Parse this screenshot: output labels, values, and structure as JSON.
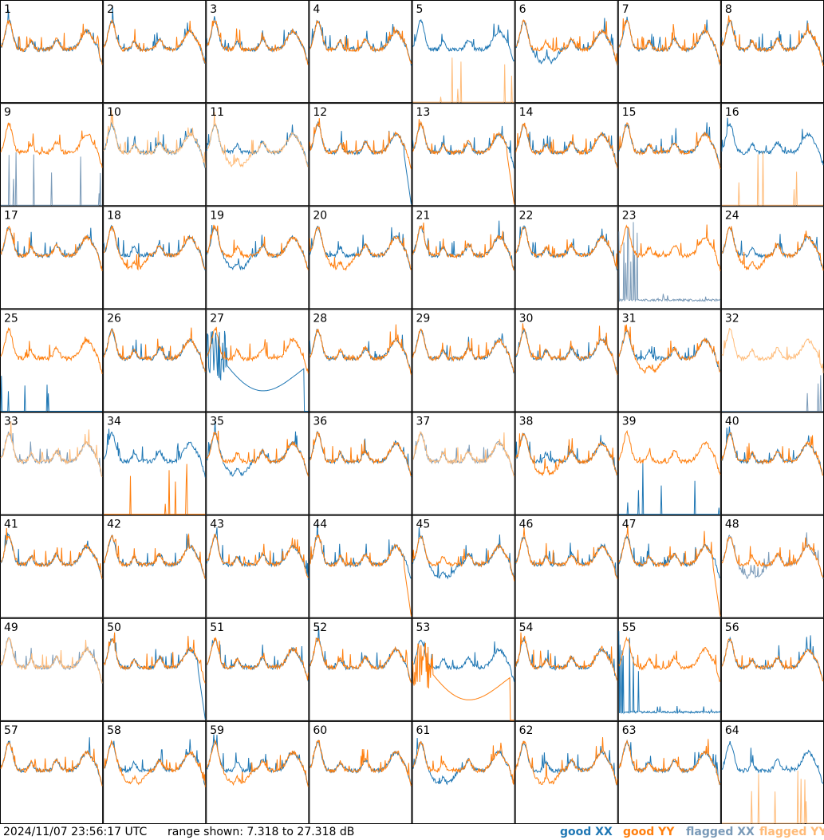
{
  "footer": {
    "timestamp": "2024/11/07 23:56:17 UTC",
    "range_text": "range shown: 7.318 to 27.318 dB"
  },
  "legend": [
    {
      "label": "good XX",
      "color": "#1f77b4"
    },
    {
      "label": "good YY",
      "color": "#ff7f0e"
    },
    {
      "label": "flagged XX",
      "color": "#7a9ab8"
    },
    {
      "label": "flagged YY",
      "color": "#ffbb78"
    }
  ],
  "chart_data": {
    "type": "line",
    "grid": {
      "rows": 8,
      "cols": 8
    },
    "ylim": [
      7.318,
      27.318
    ],
    "y_unit": "dB",
    "panels": [
      {
        "label": "1",
        "xx": "good",
        "yy": "good",
        "xx_profile": "normal",
        "yy_profile": "normal"
      },
      {
        "label": "2",
        "xx": "good",
        "yy": "good",
        "xx_profile": "normal",
        "yy_profile": "normal"
      },
      {
        "label": "3",
        "xx": "good",
        "yy": "good",
        "xx_profile": "normal",
        "yy_profile": "normal"
      },
      {
        "label": "4",
        "xx": "good",
        "yy": "good",
        "xx_profile": "normal",
        "yy_profile": "normal"
      },
      {
        "label": "5",
        "xx": "good",
        "yy": "flagged",
        "xx_profile": "normal",
        "yy_profile": "spikes"
      },
      {
        "label": "6",
        "xx": "good",
        "yy": "good",
        "xx_profile": "deep",
        "yy_profile": "normal"
      },
      {
        "label": "7",
        "xx": "good",
        "yy": "good",
        "xx_profile": "normal",
        "yy_profile": "normal"
      },
      {
        "label": "8",
        "xx": "good",
        "yy": "good",
        "xx_profile": "normal",
        "yy_profile": "normal"
      },
      {
        "label": "9",
        "xx": "flagged",
        "yy": "good",
        "xx_profile": "spikes",
        "yy_profile": "normal"
      },
      {
        "label": "10",
        "xx": "good",
        "yy": "flagged",
        "xx_profile": "normal",
        "yy_profile": "normal"
      },
      {
        "label": "11",
        "xx": "good",
        "yy": "flagged",
        "xx_profile": "normal",
        "yy_profile": "deep"
      },
      {
        "label": "12",
        "xx": "good",
        "yy": "good",
        "xx_profile": "dropend",
        "yy_profile": "normal"
      },
      {
        "label": "13",
        "xx": "good",
        "yy": "good",
        "xx_profile": "normal",
        "yy_profile": "dropend"
      },
      {
        "label": "14",
        "xx": "good",
        "yy": "good",
        "xx_profile": "normal",
        "yy_profile": "normal"
      },
      {
        "label": "15",
        "xx": "good",
        "yy": "good",
        "xx_profile": "normal",
        "yy_profile": "normal"
      },
      {
        "label": "16",
        "xx": "good",
        "yy": "flagged",
        "xx_profile": "normal",
        "yy_profile": "spikes"
      },
      {
        "label": "17",
        "xx": "good",
        "yy": "good",
        "xx_profile": "normal",
        "yy_profile": "normal"
      },
      {
        "label": "18",
        "xx": "good",
        "yy": "good",
        "xx_profile": "normal",
        "yy_profile": "deep"
      },
      {
        "label": "19",
        "xx": "good",
        "yy": "good",
        "xx_profile": "deep",
        "yy_profile": "normal"
      },
      {
        "label": "20",
        "xx": "good",
        "yy": "good",
        "xx_profile": "normal",
        "yy_profile": "deep"
      },
      {
        "label": "21",
        "xx": "good",
        "yy": "good",
        "xx_profile": "normal",
        "yy_profile": "normal"
      },
      {
        "label": "22",
        "xx": "good",
        "yy": "good",
        "xx_profile": "normal",
        "yy_profile": "normal"
      },
      {
        "label": "23",
        "xx": "flagged",
        "yy": "good",
        "xx_profile": "low",
        "yy_profile": "normal"
      },
      {
        "label": "24",
        "xx": "good",
        "yy": "good",
        "xx_profile": "normal",
        "yy_profile": "deep"
      },
      {
        "label": "25",
        "xx": "good",
        "yy": "good",
        "xx_profile": "spikes",
        "yy_profile": "normal"
      },
      {
        "label": "26",
        "xx": "good",
        "yy": "good",
        "xx_profile": "normal",
        "yy_profile": "normal"
      },
      {
        "label": "27",
        "xx": "good",
        "yy": "good",
        "xx_profile": "bowl",
        "yy_profile": "normal"
      },
      {
        "label": "28",
        "xx": "good",
        "yy": "good",
        "xx_profile": "normal",
        "yy_profile": "normal"
      },
      {
        "label": "29",
        "xx": "good",
        "yy": "good",
        "xx_profile": "normal",
        "yy_profile": "normal"
      },
      {
        "label": "30",
        "xx": "good",
        "yy": "good",
        "xx_profile": "normal",
        "yy_profile": "normal"
      },
      {
        "label": "31",
        "xx": "good",
        "yy": "good",
        "xx_profile": "normal",
        "yy_profile": "deep"
      },
      {
        "label": "32",
        "xx": "flagged",
        "yy": "flagged",
        "xx_profile": "spikes",
        "yy_profile": "normal"
      },
      {
        "label": "33",
        "xx": "flagged",
        "yy": "flagged",
        "xx_profile": "normal",
        "yy_profile": "normal"
      },
      {
        "label": "34",
        "xx": "good",
        "yy": "good",
        "xx_profile": "normal",
        "yy_profile": "spikes"
      },
      {
        "label": "35",
        "xx": "good",
        "yy": "good",
        "xx_profile": "deep",
        "yy_profile": "normal"
      },
      {
        "label": "36",
        "xx": "good",
        "yy": "good",
        "xx_profile": "normal",
        "yy_profile": "normal"
      },
      {
        "label": "37",
        "xx": "flagged",
        "yy": "flagged",
        "xx_profile": "normal",
        "yy_profile": "normal"
      },
      {
        "label": "38",
        "xx": "good",
        "yy": "good",
        "xx_profile": "normal",
        "yy_profile": "deep"
      },
      {
        "label": "39",
        "xx": "good",
        "yy": "good",
        "xx_profile": "spikes",
        "yy_profile": "normal"
      },
      {
        "label": "40",
        "xx": "good",
        "yy": "good",
        "xx_profile": "normal",
        "yy_profile": "normal"
      },
      {
        "label": "41",
        "xx": "good",
        "yy": "good",
        "xx_profile": "normal",
        "yy_profile": "normal"
      },
      {
        "label": "42",
        "xx": "good",
        "yy": "good",
        "xx_profile": "normal",
        "yy_profile": "normal"
      },
      {
        "label": "43",
        "xx": "good",
        "yy": "good",
        "xx_profile": "normal",
        "yy_profile": "normal"
      },
      {
        "label": "44",
        "xx": "good",
        "yy": "good",
        "xx_profile": "normal",
        "yy_profile": "dropend"
      },
      {
        "label": "45",
        "xx": "good",
        "yy": "good",
        "xx_profile": "deep",
        "yy_profile": "normal"
      },
      {
        "label": "46",
        "xx": "good",
        "yy": "good",
        "xx_profile": "normal",
        "yy_profile": "normal"
      },
      {
        "label": "47",
        "xx": "good",
        "yy": "good",
        "xx_profile": "normal",
        "yy_profile": "dropend"
      },
      {
        "label": "48",
        "xx": "flagged",
        "yy": "good",
        "xx_profile": "deep",
        "yy_profile": "normal"
      },
      {
        "label": "49",
        "xx": "flagged",
        "yy": "flagged",
        "xx_profile": "normal",
        "yy_profile": "normal"
      },
      {
        "label": "50",
        "xx": "good",
        "yy": "good",
        "xx_profile": "dropend",
        "yy_profile": "normal"
      },
      {
        "label": "51",
        "xx": "good",
        "yy": "good",
        "xx_profile": "normal",
        "yy_profile": "normal"
      },
      {
        "label": "52",
        "xx": "good",
        "yy": "good",
        "xx_profile": "normal",
        "yy_profile": "normal"
      },
      {
        "label": "53",
        "xx": "good",
        "yy": "good",
        "xx_profile": "normal",
        "yy_profile": "bowl"
      },
      {
        "label": "54",
        "xx": "good",
        "yy": "good",
        "xx_profile": "normal",
        "yy_profile": "normal"
      },
      {
        "label": "55",
        "xx": "good",
        "yy": "good",
        "xx_profile": "low",
        "yy_profile": "normal"
      },
      {
        "label": "56",
        "xx": "good",
        "yy": "good",
        "xx_profile": "normal",
        "yy_profile": "normal"
      },
      {
        "label": "57",
        "xx": "good",
        "yy": "good",
        "xx_profile": "normal",
        "yy_profile": "normal"
      },
      {
        "label": "58",
        "xx": "good",
        "yy": "good",
        "xx_profile": "normal",
        "yy_profile": "deep"
      },
      {
        "label": "59",
        "xx": "good",
        "yy": "good",
        "xx_profile": "normal",
        "yy_profile": "deep"
      },
      {
        "label": "60",
        "xx": "good",
        "yy": "good",
        "xx_profile": "normal",
        "yy_profile": "normal"
      },
      {
        "label": "61",
        "xx": "good",
        "yy": "good",
        "xx_profile": "deep",
        "yy_profile": "normal"
      },
      {
        "label": "62",
        "xx": "good",
        "yy": "good",
        "xx_profile": "normal",
        "yy_profile": "deep"
      },
      {
        "label": "63",
        "xx": "good",
        "yy": "good",
        "xx_profile": "normal",
        "yy_profile": "normal"
      },
      {
        "label": "64",
        "xx": "good",
        "yy": "flagged",
        "xx_profile": "normal",
        "yy_profile": "spikes"
      }
    ]
  }
}
